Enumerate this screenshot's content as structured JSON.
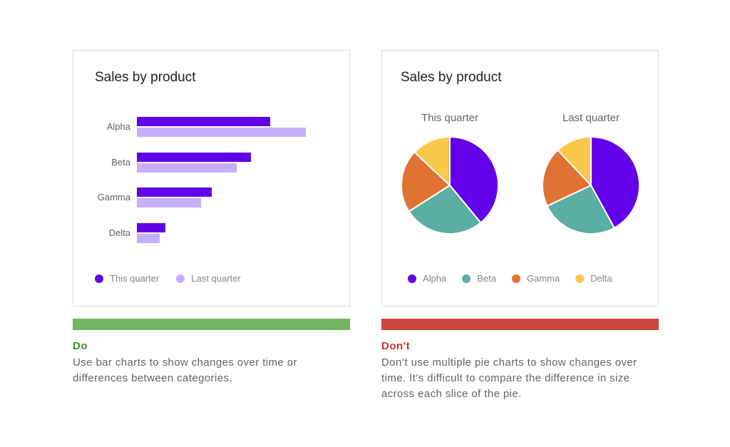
{
  "chart_data": [
    {
      "type": "bar",
      "orientation": "horizontal",
      "title": "Sales by product",
      "categories": [
        "Alpha",
        "Beta",
        "Gamma",
        "Delta"
      ],
      "series": [
        {
          "name": "This quarter",
          "values": [
            75,
            64,
            42,
            16
          ],
          "color": "#6200ea"
        },
        {
          "name": "Last quarter",
          "values": [
            95,
            56,
            36,
            13
          ],
          "color": "#c7aefa"
        }
      ],
      "xlim": [
        0,
        100
      ],
      "grid": false,
      "legend": "bottom-left"
    },
    {
      "type": "pie",
      "title": "Sales by product",
      "categories": [
        "Alpha",
        "Beta",
        "Gamma",
        "Delta"
      ],
      "colors": [
        "#6200ea",
        "#5aaea3",
        "#e07332",
        "#f8c84c"
      ],
      "series": [
        {
          "name": "This quarter",
          "values": [
            39,
            27,
            21,
            13
          ]
        },
        {
          "name": "Last quarter",
          "values": [
            42,
            26,
            20,
            12
          ]
        }
      ],
      "legend": "bottom"
    }
  ],
  "do": {
    "label": "Do",
    "color": "#3f8a34",
    "bar_color": "#72b564",
    "text": "Use bar charts to show changes over time or differences between categories."
  },
  "dont": {
    "label": "Don't",
    "color": "#c5352e",
    "bar_color": "#cc4640",
    "text": "Don’t use multiple pie charts to show changes over time. It’s difficult to compare the difference in size across each slice of the pie."
  }
}
